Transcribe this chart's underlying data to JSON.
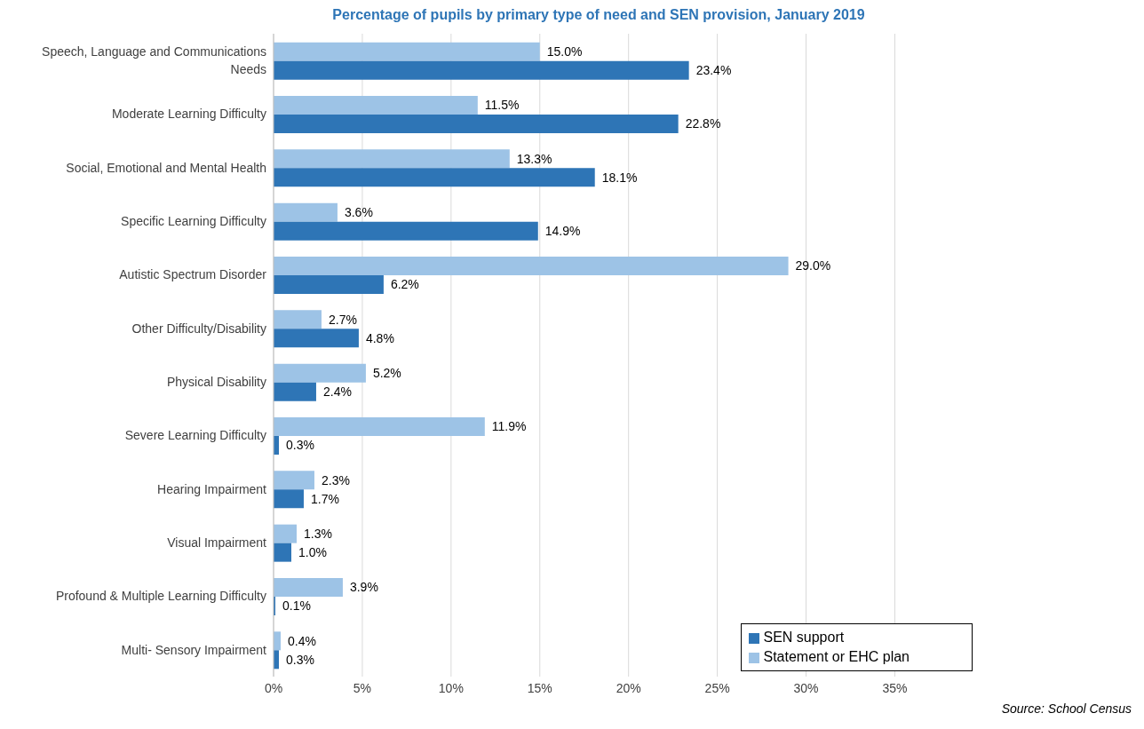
{
  "chart_data": {
    "type": "bar",
    "orientation": "horizontal",
    "title": "Percentage of pupils by primary type of need and SEN provision, January 2019",
    "categories": [
      "Speech, Language and Communications Needs",
      "Moderate Learning Difficulty",
      "Social, Emotional and Mental Health",
      "Specific Learning Difficulty",
      "Autistic Spectrum Disorder",
      "Other Difficulty/Disability",
      "Physical Disability",
      "Severe Learning Difficulty",
      "Hearing Impairment",
      "Visual Impairment",
      "Profound & Multiple Learning Difficulty",
      "Multi- Sensory Impairment"
    ],
    "series": [
      {
        "name": "Statement  or EHC plan",
        "color": "#9dc3e6",
        "values": [
          15.0,
          11.5,
          13.3,
          3.6,
          29.0,
          2.7,
          5.2,
          11.9,
          2.3,
          1.3,
          3.9,
          0.4
        ],
        "value_labels": [
          "15.0%",
          "11.5%",
          "13.3%",
          "3.6%",
          "29.0%",
          "2.7%",
          "5.2%",
          "11.9%",
          "2.3%",
          "1.3%",
          "3.9%",
          "0.4%"
        ]
      },
      {
        "name": "SEN support",
        "color": "#2e75b6",
        "values": [
          23.4,
          22.8,
          18.1,
          14.9,
          6.2,
          4.8,
          2.4,
          0.3,
          1.7,
          1.0,
          0.1,
          0.3
        ],
        "value_labels": [
          "23.4%",
          "22.8%",
          "18.1%",
          "14.9%",
          "6.2%",
          "4.8%",
          "2.4%",
          "0.3%",
          "1.7%",
          "1.0%",
          "0.1%",
          "0.3%"
        ]
      }
    ],
    "xlim": [
      0,
      35
    ],
    "xticks": [
      {
        "value": 0,
        "label": "0%"
      },
      {
        "value": 5,
        "label": "5%"
      },
      {
        "value": 10,
        "label": "10%"
      },
      {
        "value": 15,
        "label": "15%"
      },
      {
        "value": 20,
        "label": "20%"
      },
      {
        "value": 25,
        "label": "25%"
      },
      {
        "value": 30,
        "label": "30%"
      },
      {
        "value": 35,
        "label": "35%"
      }
    ],
    "grid": "x",
    "legend": "bottom right",
    "annotations": [
      "Source: School Census"
    ]
  }
}
